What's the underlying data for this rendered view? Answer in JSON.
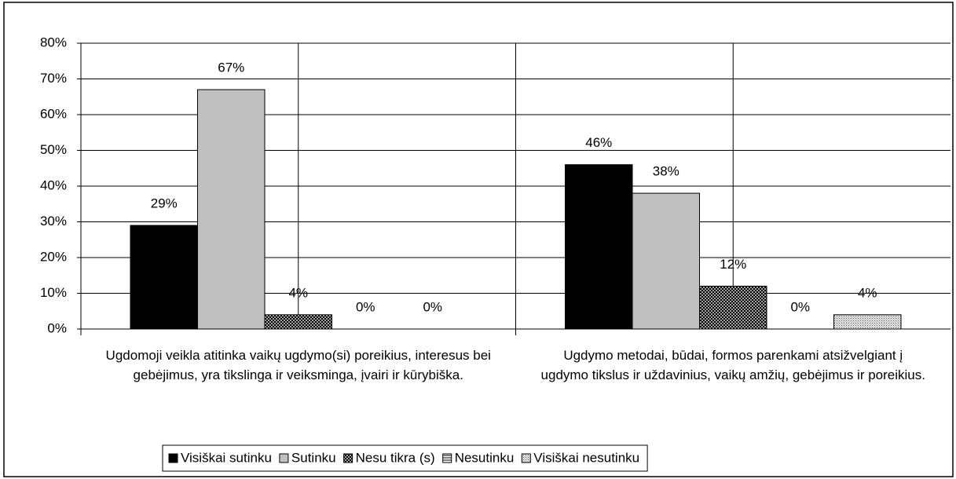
{
  "chart_data": {
    "type": "bar",
    "categories": [
      "Ugdomoji veikla atitinka vaikų ugdymo(si) poreikius, interesus bei gebėjimus, yra tikslinga ir veiksminga, įvairi ir kūrybiška.",
      "Ugdymo metodai, būdai, formos parenkami atsižvelgiant į ugdymo tikslus ir uždavinius, vaikų amžių, gebėjimus ir poreikius."
    ],
    "series": [
      {
        "name": "Visiškai sutinku",
        "color": "#000000",
        "values": [
          29,
          46
        ],
        "value_labels": [
          "29%",
          "46%"
        ]
      },
      {
        "name": "Sutinku",
        "color": "#c0c0c0",
        "values": [
          67,
          38
        ],
        "value_labels": [
          "67%",
          "38%"
        ]
      },
      {
        "name": "Nesu tikra (s)",
        "color": "crosshatch",
        "values": [
          4,
          12
        ],
        "value_labels": [
          "4%",
          "12%"
        ]
      },
      {
        "name": "Nesutinku",
        "color": "horizontal",
        "values": [
          0,
          0
        ],
        "value_labels": [
          "0%",
          "0%"
        ]
      },
      {
        "name": "Visiškai nesutinku",
        "color": "dotted",
        "values": [
          0,
          4
        ],
        "value_labels": [
          "0%",
          "4%"
        ]
      }
    ],
    "ylim": [
      0,
      80
    ],
    "yticks": [
      {
        "value": 0,
        "label": "0%"
      },
      {
        "value": 10,
        "label": "10%"
      },
      {
        "value": 20,
        "label": "20%"
      },
      {
        "value": 30,
        "label": "30%"
      },
      {
        "value": 40,
        "label": "40%"
      },
      {
        "value": 50,
        "label": "50%"
      },
      {
        "value": 60,
        "label": "60%"
      },
      {
        "value": 70,
        "label": "70%"
      },
      {
        "value": 80,
        "label": "80%"
      }
    ],
    "grid": true,
    "legend": "bottom"
  }
}
